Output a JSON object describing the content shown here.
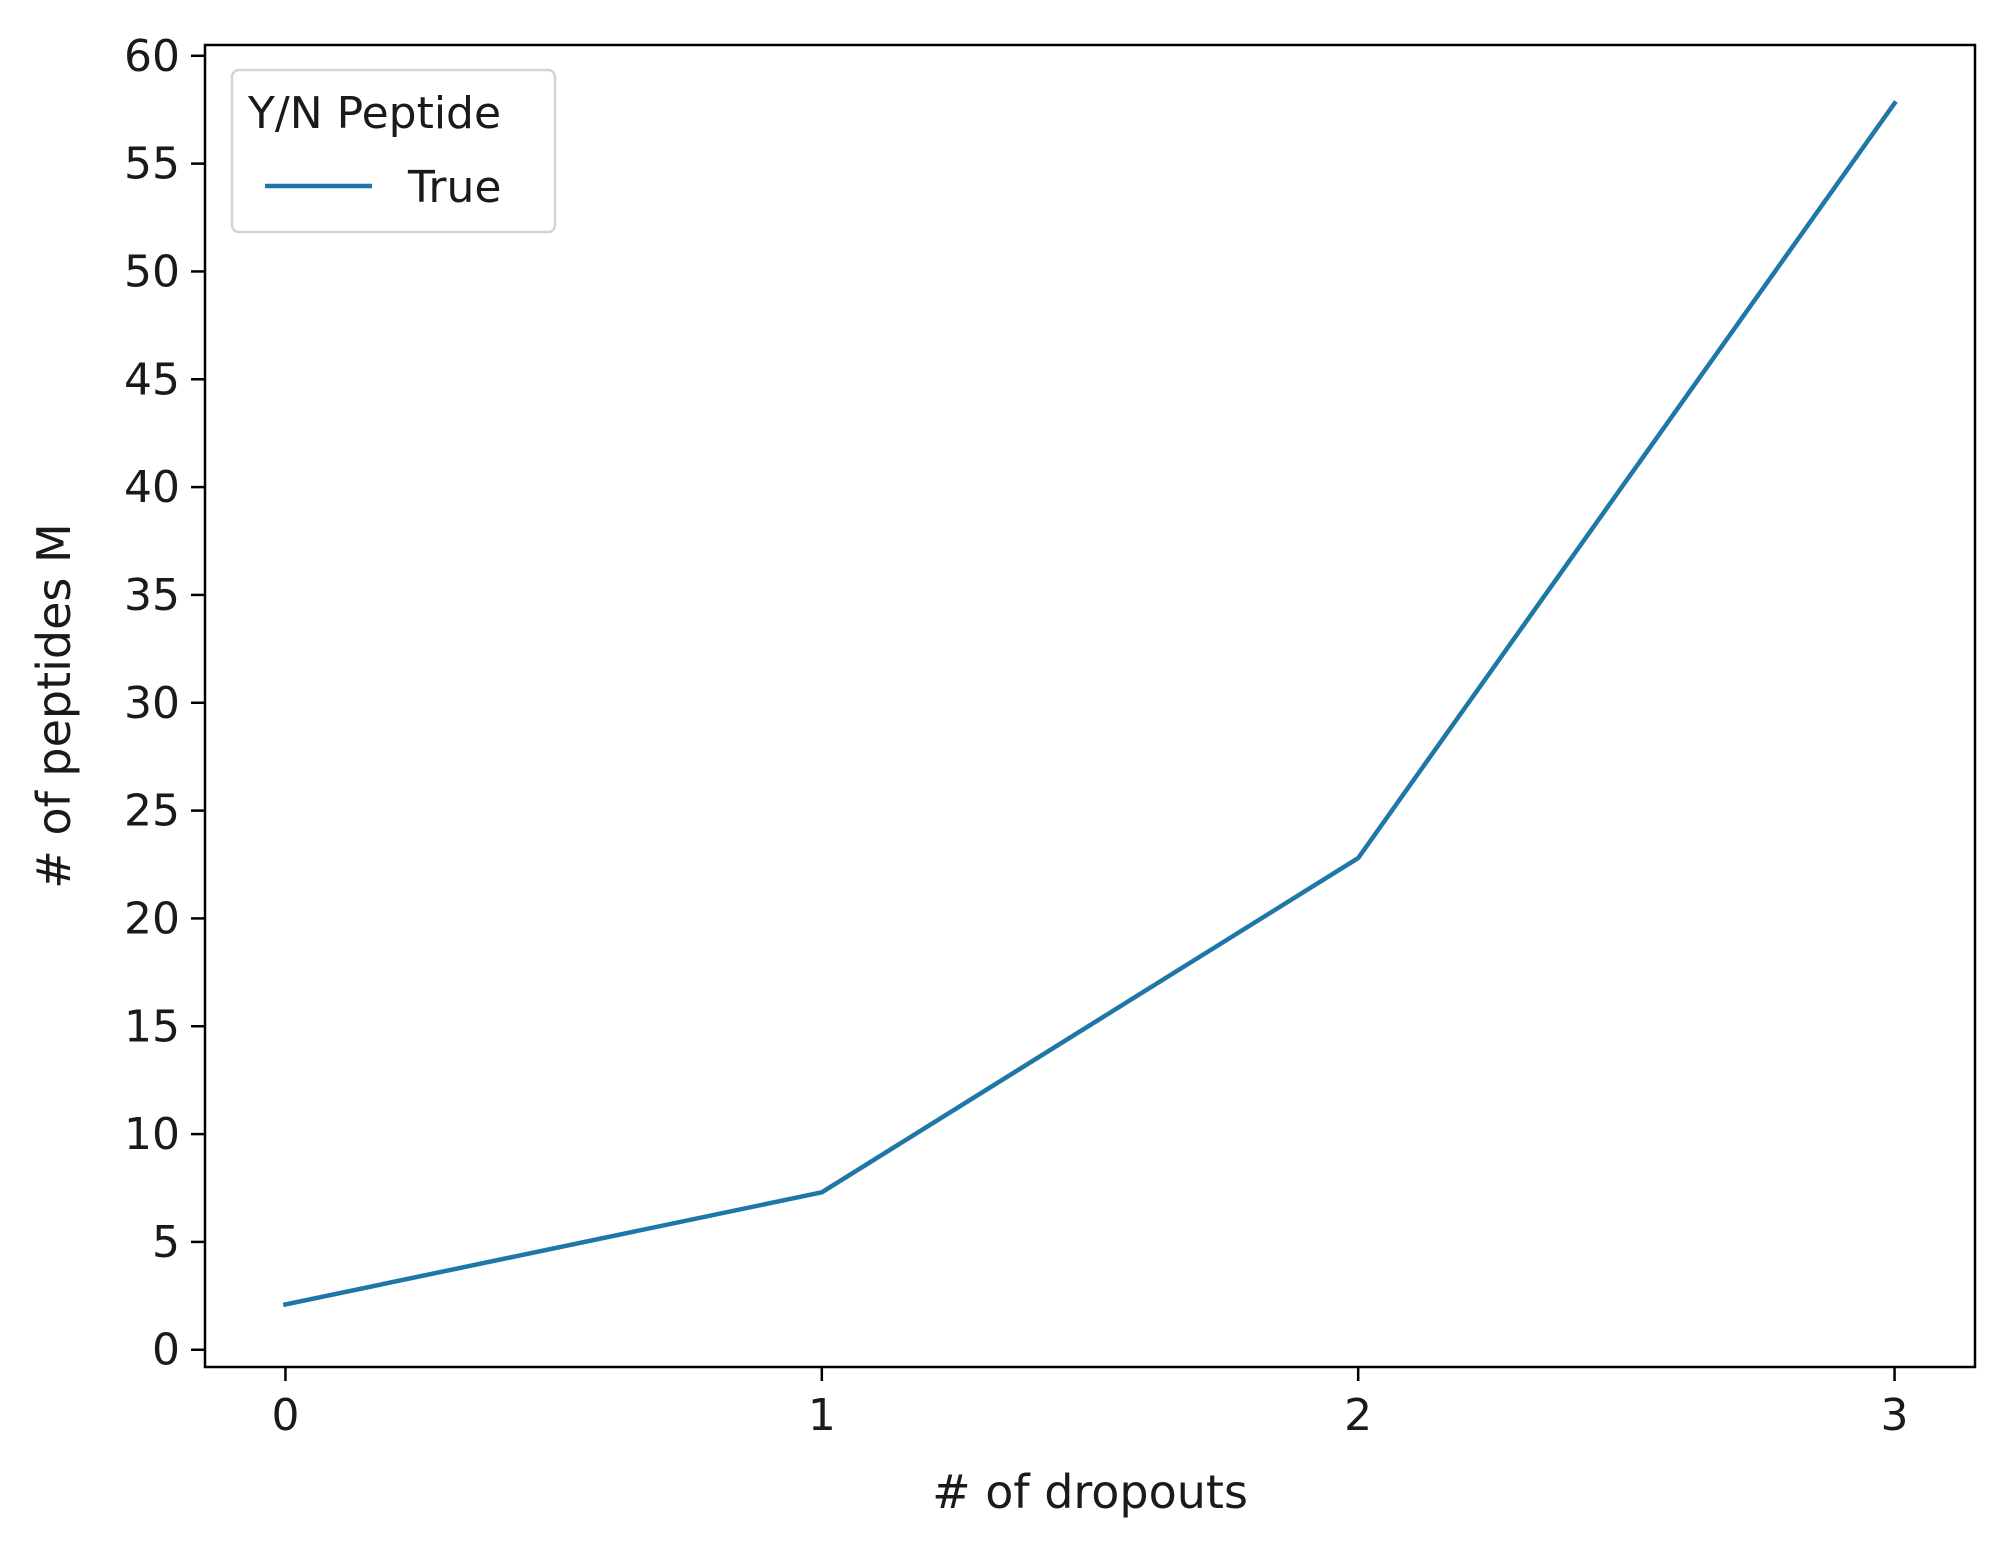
{
  "chart_data": {
    "type": "line",
    "title": "",
    "xlabel": "# of dropouts",
    "ylabel": "# of peptides M",
    "x": [
      0,
      1,
      2,
      3
    ],
    "xticks": [
      0,
      1,
      2,
      3
    ],
    "yticks": [
      0,
      5,
      10,
      15,
      20,
      25,
      30,
      35,
      40,
      45,
      50,
      55,
      60
    ],
    "xlim": [
      -0.15,
      3.15
    ],
    "ylim": [
      -0.8,
      60.5
    ],
    "grid": false,
    "series": [
      {
        "name": "True",
        "values": [
          2.1,
          7.3,
          22.8,
          57.8
        ],
        "color": "#1f77a8"
      }
    ],
    "legend": {
      "title": "Y/N Peptide",
      "placement": "top-left"
    }
  }
}
